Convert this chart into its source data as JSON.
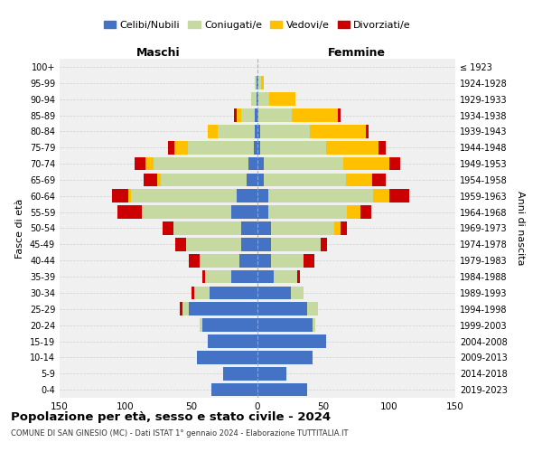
{
  "age_groups": [
    "0-4",
    "5-9",
    "10-14",
    "15-19",
    "20-24",
    "25-29",
    "30-34",
    "35-39",
    "40-44",
    "45-49",
    "50-54",
    "55-59",
    "60-64",
    "65-69",
    "70-74",
    "75-79",
    "80-84",
    "85-89",
    "90-94",
    "95-99",
    "100+"
  ],
  "birth_years": [
    "2019-2023",
    "2014-2018",
    "2009-2013",
    "2004-2008",
    "1999-2003",
    "1994-1998",
    "1989-1993",
    "1984-1988",
    "1979-1983",
    "1974-1978",
    "1969-1973",
    "1964-1968",
    "1959-1963",
    "1954-1958",
    "1949-1953",
    "1944-1948",
    "1939-1943",
    "1934-1938",
    "1929-1933",
    "1924-1928",
    "≤ 1923"
  ],
  "male": {
    "celibi": [
      35,
      26,
      46,
      38,
      42,
      52,
      36,
      20,
      14,
      12,
      12,
      20,
      16,
      8,
      7,
      3,
      2,
      2,
      1,
      1,
      0
    ],
    "coniugati": [
      0,
      0,
      0,
      0,
      2,
      5,
      12,
      20,
      30,
      42,
      52,
      68,
      80,
      65,
      72,
      50,
      28,
      10,
      4,
      1,
      0
    ],
    "vedovi": [
      0,
      0,
      0,
      0,
      0,
      0,
      0,
      0,
      0,
      0,
      0,
      0,
      2,
      3,
      6,
      10,
      8,
      4,
      0,
      0,
      0
    ],
    "divorziati": [
      0,
      0,
      0,
      0,
      0,
      2,
      2,
      2,
      8,
      8,
      8,
      18,
      12,
      10,
      8,
      5,
      0,
      2,
      0,
      0,
      0
    ]
  },
  "female": {
    "nubili": [
      38,
      22,
      42,
      52,
      42,
      38,
      25,
      12,
      10,
      10,
      10,
      8,
      8,
      5,
      5,
      2,
      2,
      1,
      1,
      1,
      0
    ],
    "coniugate": [
      0,
      0,
      0,
      0,
      2,
      8,
      10,
      18,
      25,
      38,
      48,
      60,
      80,
      62,
      60,
      50,
      38,
      25,
      8,
      2,
      0
    ],
    "vedove": [
      0,
      0,
      0,
      0,
      0,
      0,
      0,
      0,
      0,
      0,
      5,
      10,
      12,
      20,
      35,
      40,
      42,
      35,
      20,
      2,
      0
    ],
    "divorziate": [
      0,
      0,
      0,
      0,
      0,
      0,
      0,
      2,
      8,
      5,
      5,
      8,
      15,
      10,
      8,
      5,
      2,
      2,
      0,
      0,
      0
    ]
  },
  "colors": {
    "celibi": "#4472c4",
    "coniugati": "#c5d9a0",
    "vedovi": "#ffc000",
    "divorziati": "#cc0000"
  },
  "title": "Popolazione per età, sesso e stato civile - 2024",
  "subtitle": "COMUNE DI SAN GINESIO (MC) - Dati ISTAT 1° gennaio 2024 - Elaborazione TUTTITALIA.IT",
  "xlabel_left": "Maschi",
  "xlabel_right": "Femmine",
  "ylabel_left": "Fasce di età",
  "ylabel_right": "Anni di nascita",
  "xlim": 150,
  "legend_labels": [
    "Celibi/Nubili",
    "Coniugati/e",
    "Vedovi/e",
    "Divorziati/e"
  ],
  "bg_color": "#f0f0f0",
  "grid_color": "#cccccc"
}
